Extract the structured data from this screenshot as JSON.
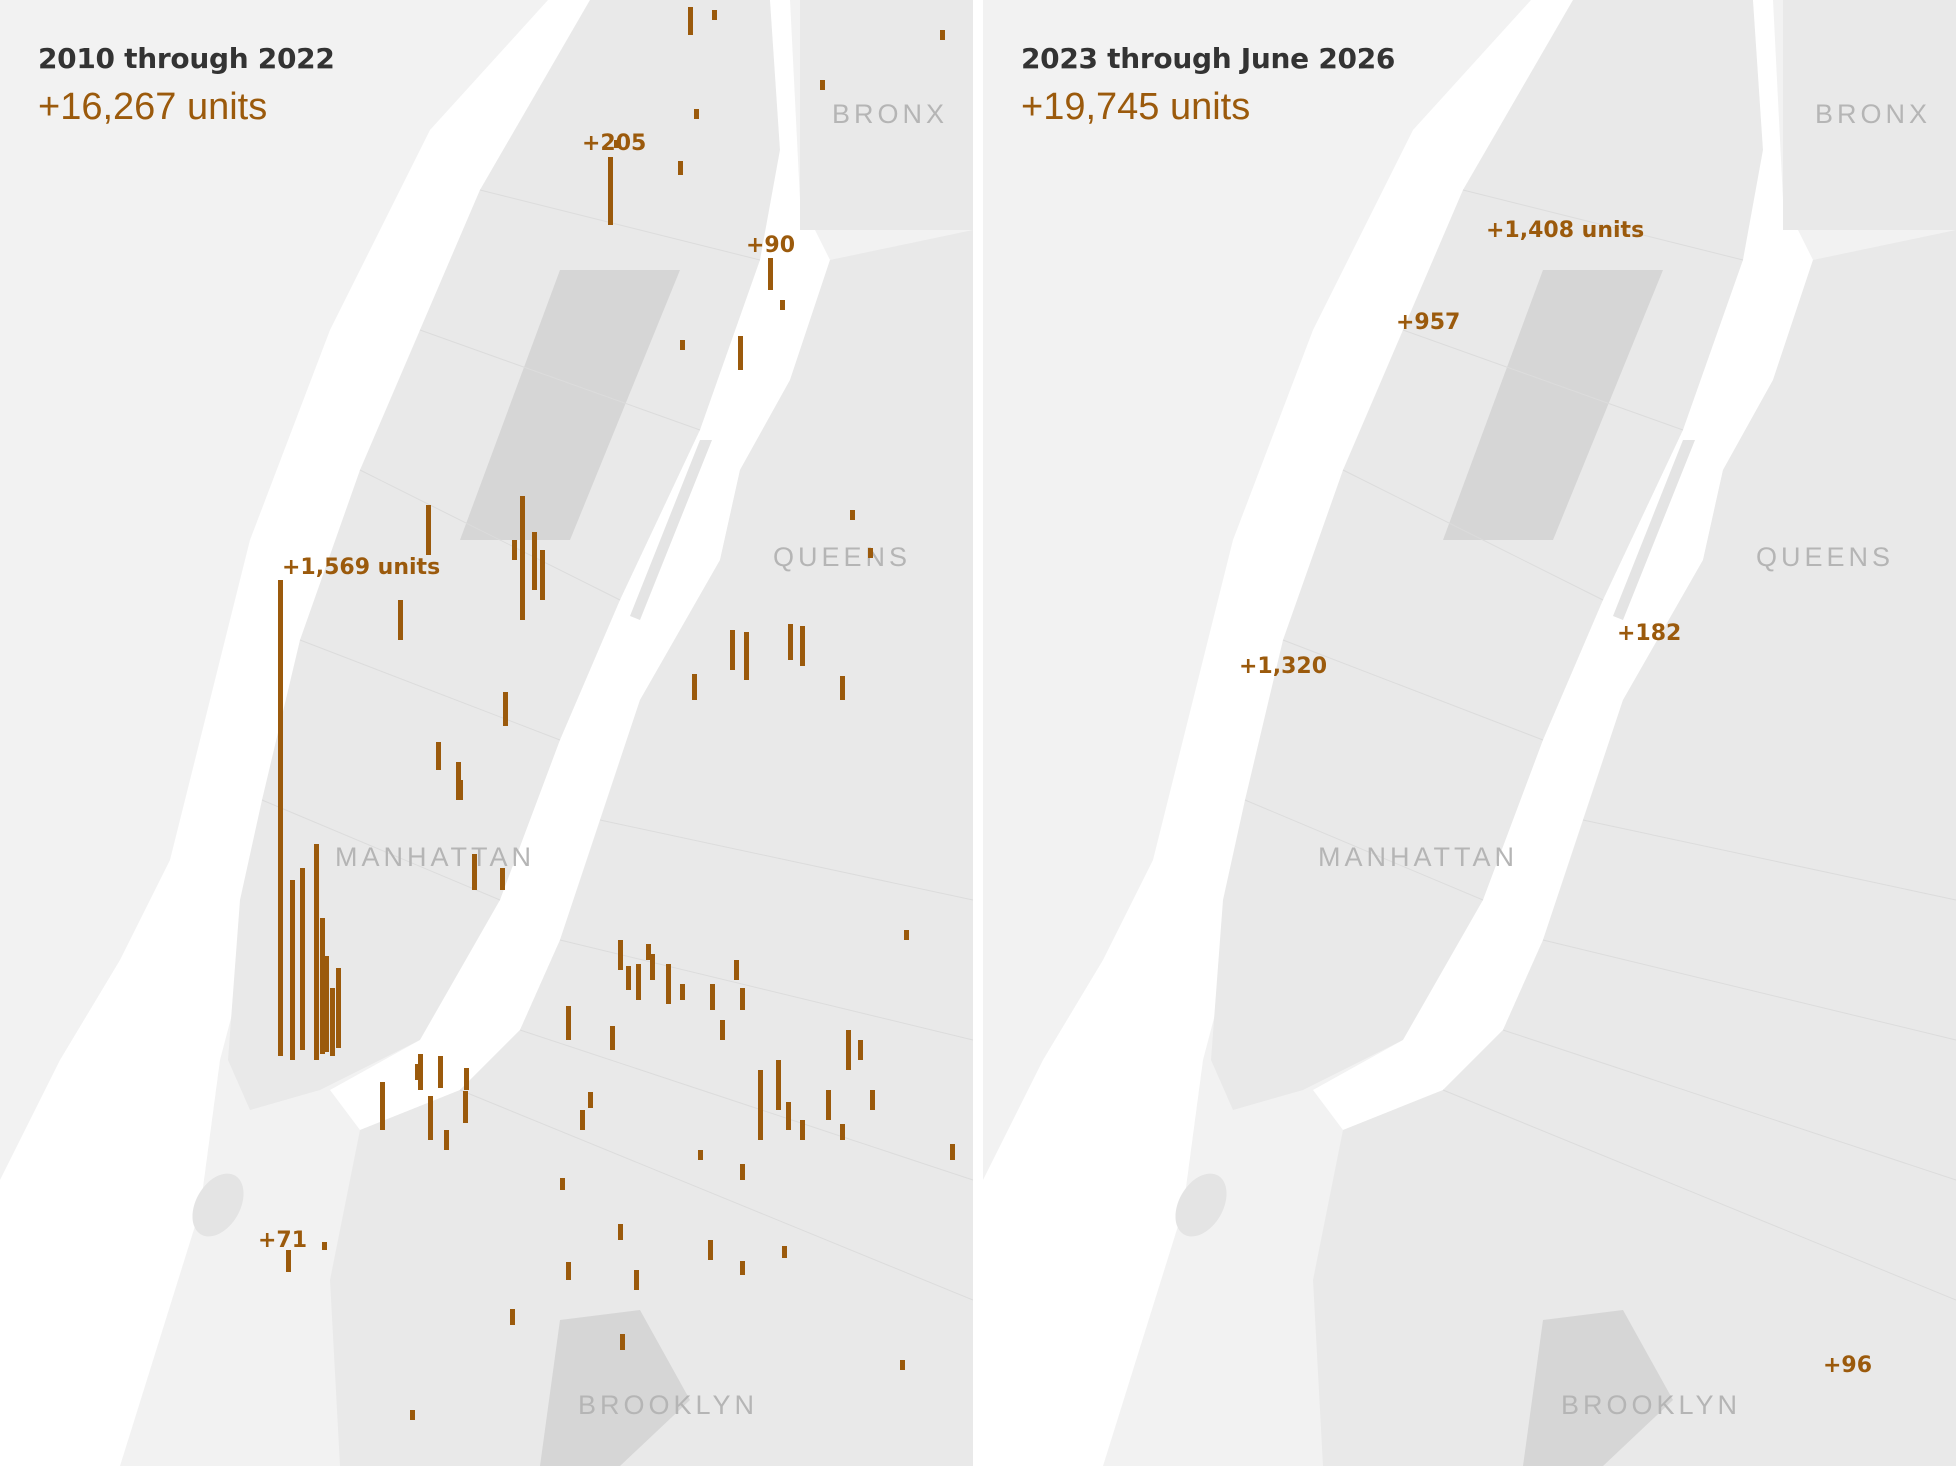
{
  "accent_color": "#9b5a0c",
  "panels": [
    {
      "title": "2010 through 2022",
      "total": "+16,267 units",
      "boroughs": [
        "BRONX",
        "QUEENS",
        "MANHATTAN",
        "BROOKLYN"
      ],
      "callouts": [
        {
          "label": "+205",
          "units": 205
        },
        {
          "label": "+90",
          "units": 90
        },
        {
          "label": "+1,569 units",
          "units": 1569
        },
        {
          "label": "+71",
          "units": 71
        }
      ]
    },
    {
      "title": "2023 through June 2026",
      "total": "+19,745 units",
      "boroughs": [
        "BRONX",
        "QUEENS",
        "MANHATTAN",
        "BROOKLYN"
      ],
      "callouts": [
        {
          "label": "+1,408 units",
          "units": 1408
        },
        {
          "label": "+957",
          "units": 957
        },
        {
          "label": "+1,320",
          "units": 1320
        },
        {
          "label": "+182",
          "units": 182
        },
        {
          "label": "+96",
          "units": 96
        }
      ]
    }
  ]
}
